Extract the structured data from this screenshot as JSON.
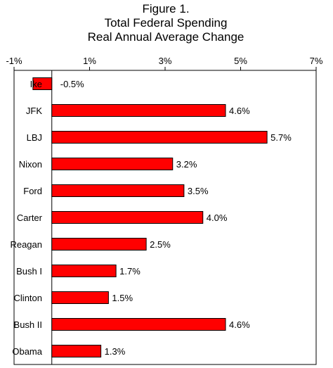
{
  "chart_data": {
    "type": "bar",
    "orientation": "horizontal",
    "title_lines": [
      "Figure 1.",
      "Total Federal Spending",
      "Real Annual Average Change"
    ],
    "categories": [
      "Ike",
      "JFK",
      "LBJ",
      "Nixon",
      "Ford",
      "Carter",
      "Reagan",
      "Bush I",
      "Clinton",
      "Bush II",
      "Obama"
    ],
    "values": [
      -0.5,
      4.6,
      5.7,
      3.2,
      3.5,
      4.0,
      2.5,
      1.7,
      1.5,
      4.6,
      1.3
    ],
    "value_labels": [
      "-0.5%",
      "4.6%",
      "5.7%",
      "3.2%",
      "3.5%",
      "4.0%",
      "2.5%",
      "1.7%",
      "1.5%",
      "4.6%",
      "1.3%"
    ],
    "x_ticks": [
      -1,
      1,
      3,
      5,
      7
    ],
    "x_tick_labels": [
      "-1%",
      "1%",
      "3%",
      "5%",
      "7%"
    ],
    "xlim": [
      -1,
      7
    ],
    "axis_position": "top",
    "grid": false,
    "bar_color": "#ff0000",
    "bar_edge_color": "#000000"
  }
}
